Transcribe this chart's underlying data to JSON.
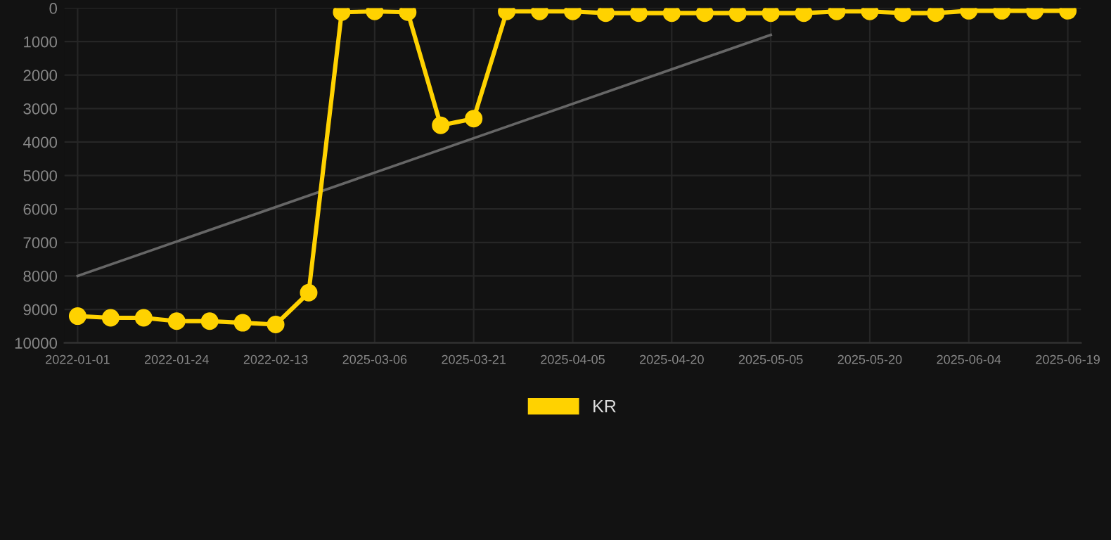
{
  "chart_data": {
    "type": "line",
    "categories": [
      "2022-01-01",
      null,
      null,
      "2022-01-24",
      null,
      null,
      "2022-02-13",
      null,
      null,
      "2025-03-06",
      null,
      null,
      "2025-03-21",
      null,
      null,
      "2025-04-05",
      null,
      null,
      "2025-04-20",
      null,
      null,
      "2025-05-05",
      null,
      null,
      "2025-05-20",
      null,
      null,
      "2025-06-04",
      null,
      null,
      "2025-06-19"
    ],
    "series": [
      {
        "name": "KR",
        "color": "#ffd200",
        "marker": "circle",
        "values": [
          9200,
          9250,
          9250,
          9350,
          9350,
          9400,
          9450,
          8500,
          120,
          100,
          120,
          3500,
          3300,
          100,
          100,
          100,
          150,
          150,
          150,
          150,
          150,
          150,
          150,
          100,
          100,
          150,
          150,
          80,
          80,
          80,
          80
        ]
      },
      {
        "color": "#666666",
        "marker": "none",
        "values": [
          8000,
          null,
          null,
          null,
          null,
          null,
          null,
          null,
          null,
          null,
          null,
          null,
          null,
          null,
          null,
          null,
          null,
          null,
          null,
          null,
          null,
          800,
          null,
          null,
          null,
          null,
          null,
          null,
          null,
          null,
          null
        ]
      }
    ],
    "ylim": [
      10000,
      0
    ],
    "yticks": [
      0,
      1000,
      2000,
      3000,
      4000,
      5000,
      6000,
      7000,
      8000,
      9000,
      10000
    ],
    "grid": true,
    "legend": "bottom",
    "line_style": "solid"
  }
}
